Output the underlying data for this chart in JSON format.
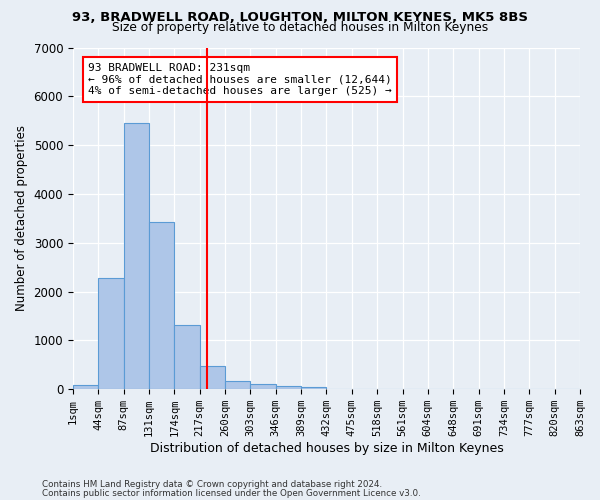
{
  "title1": "93, BRADWELL ROAD, LOUGHTON, MILTON KEYNES, MK5 8BS",
  "title2": "Size of property relative to detached houses in Milton Keynes",
  "xlabel": "Distribution of detached houses by size in Milton Keynes",
  "ylabel": "Number of detached properties",
  "bin_labels": [
    "1sqm",
    "44sqm",
    "87sqm",
    "131sqm",
    "174sqm",
    "217sqm",
    "260sqm",
    "303sqm",
    "346sqm",
    "389sqm",
    "432sqm",
    "475sqm",
    "518sqm",
    "561sqm",
    "604sqm",
    "648sqm",
    "691sqm",
    "734sqm",
    "777sqm",
    "820sqm",
    "863sqm"
  ],
  "bar_values": [
    80,
    2280,
    5460,
    3430,
    1310,
    470,
    160,
    110,
    70,
    40,
    0,
    0,
    0,
    0,
    0,
    0,
    0,
    0,
    0,
    0
  ],
  "bar_color": "#aec6e8",
  "bar_edge_color": "#5b9bd5",
  "vline_x": 5.28,
  "vline_color": "red",
  "annotation_text": "93 BRADWELL ROAD: 231sqm\n← 96% of detached houses are smaller (12,644)\n4% of semi-detached houses are larger (525) →",
  "annotation_box_color": "white",
  "annotation_box_edge": "red",
  "ylim": [
    0,
    7000
  ],
  "yticks": [
    0,
    1000,
    2000,
    3000,
    4000,
    5000,
    6000,
    7000
  ],
  "footer1": "Contains HM Land Registry data © Crown copyright and database right 2024.",
  "footer2": "Contains public sector information licensed under the Open Government Licence v3.0.",
  "bg_color": "#e8eef5",
  "plot_bg_color": "#e8eef5"
}
